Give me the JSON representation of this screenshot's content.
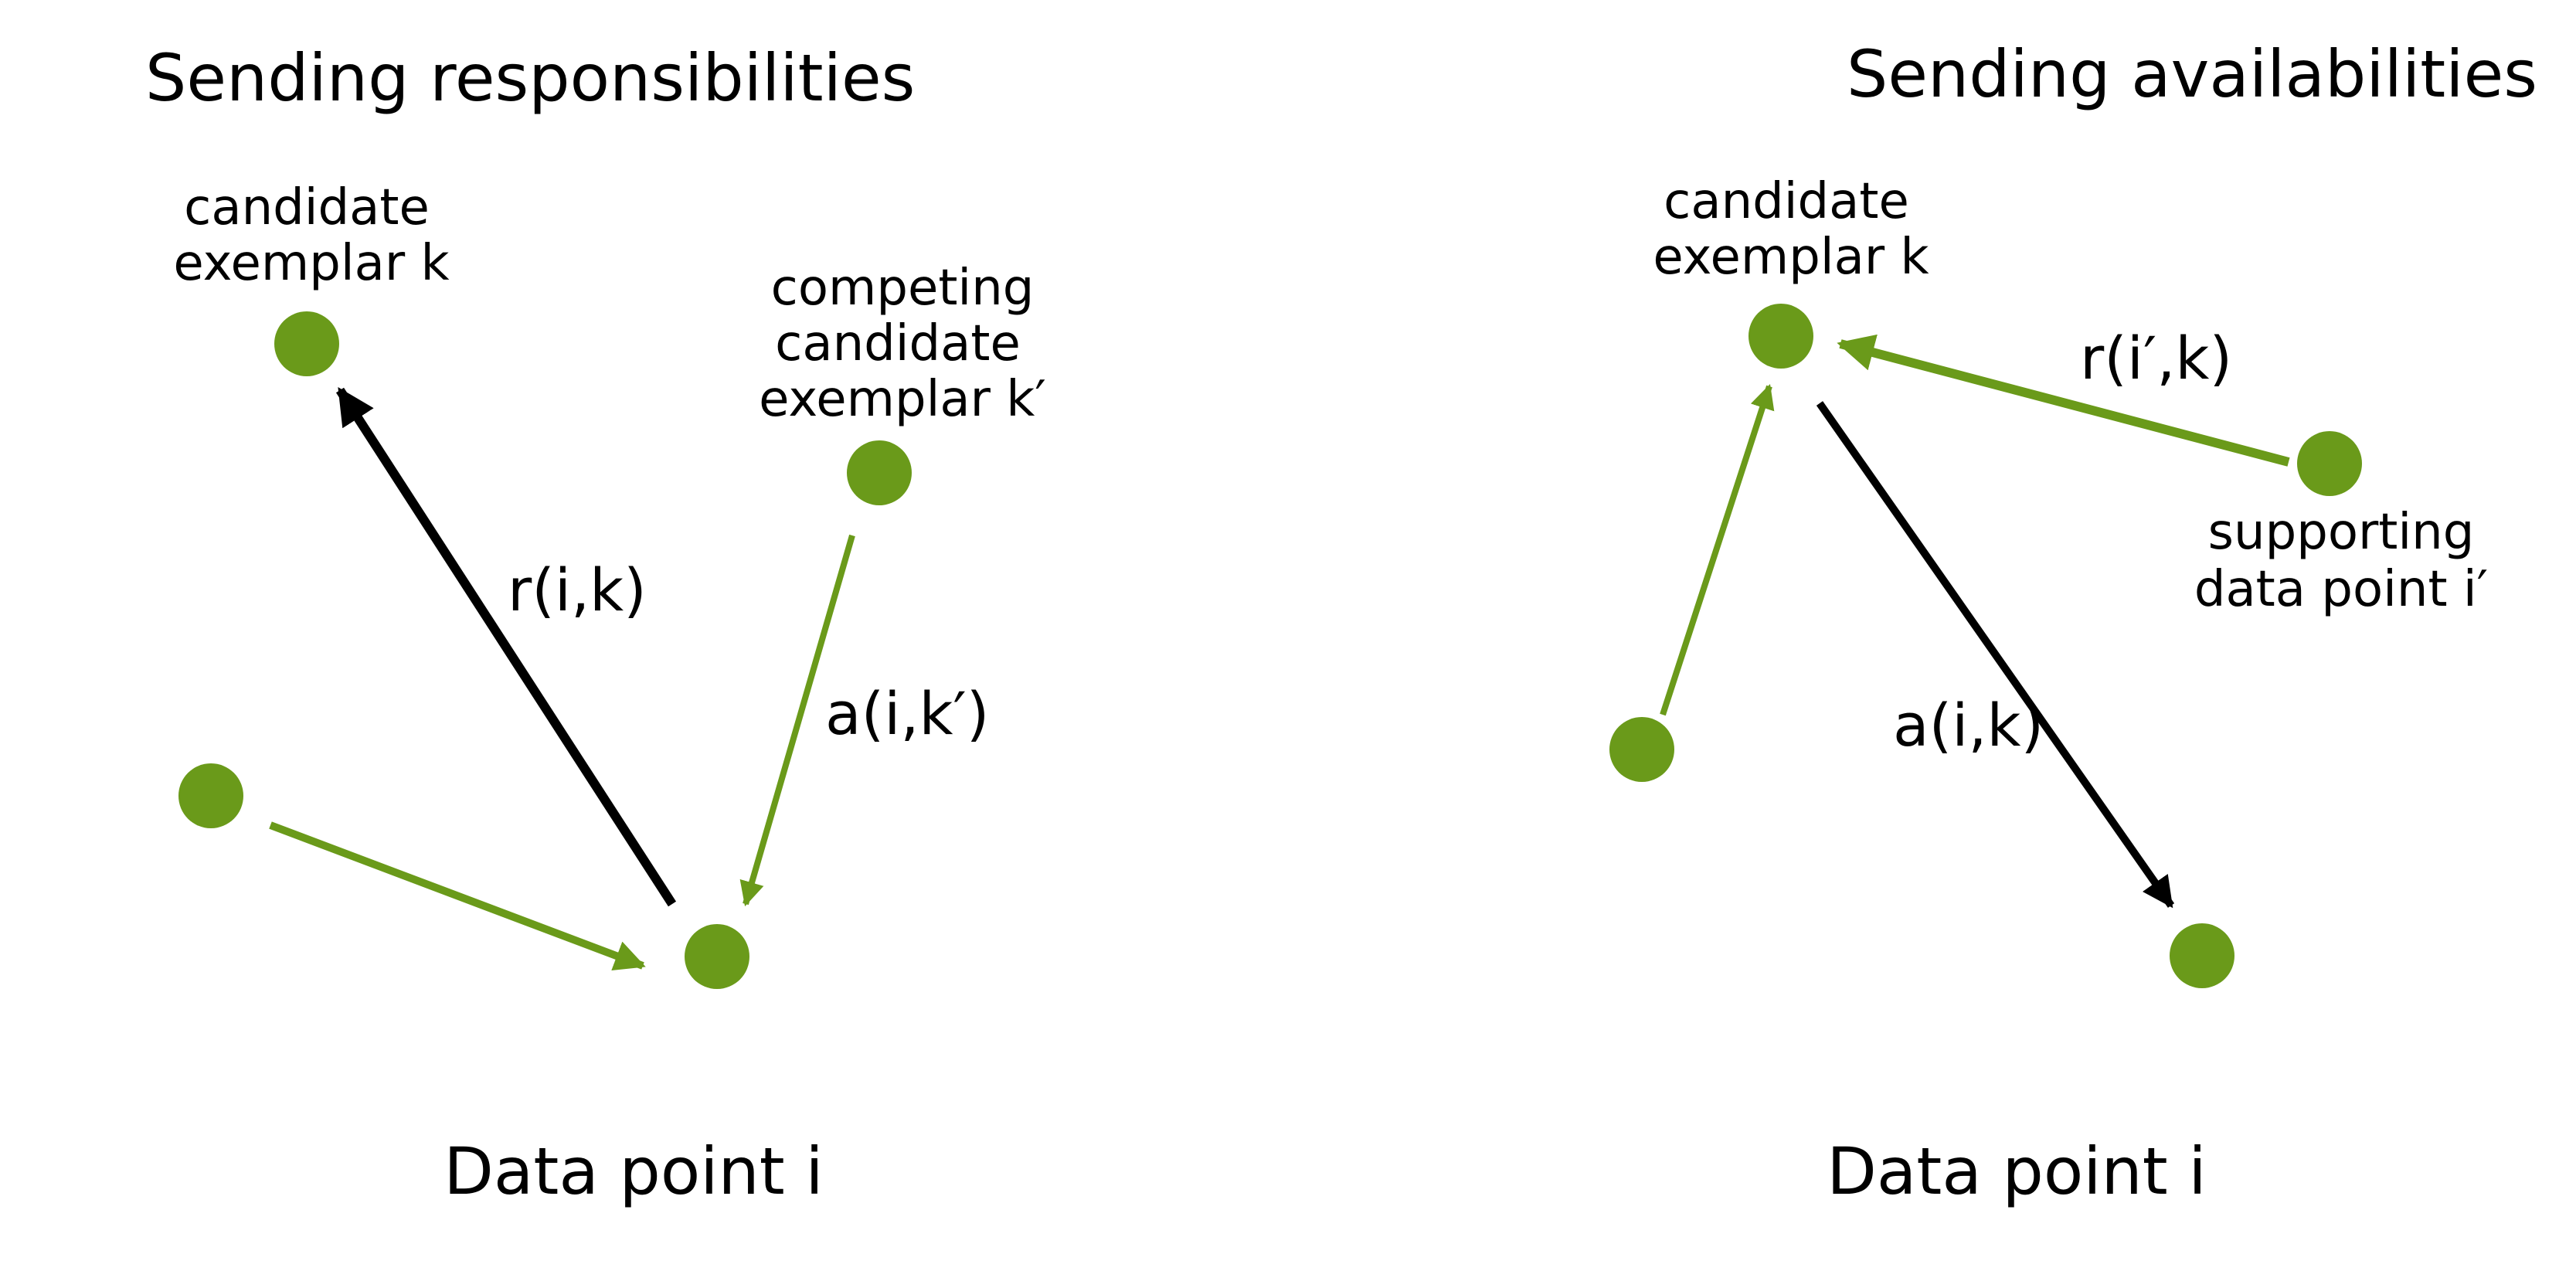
{
  "colors": {
    "node": "#6a9a1a",
    "green_arrow": "#6a9a1a",
    "black_arrow": "#000000",
    "background": "#ffffff"
  },
  "left_panel": {
    "title": "Sending responsibilities",
    "candidate_label_line1": "candidate",
    "candidate_label_line2": "exemplar k",
    "competing_label_line1": "competing",
    "competing_label_line2": "candidate",
    "competing_label_line3": "exemplar k′",
    "r_label": "r(i,k)",
    "a_label": "a(i,k′)",
    "data_point_label": "Data point i"
  },
  "right_panel": {
    "title": "Sending availabilities",
    "candidate_label_line1": "candidate",
    "candidate_label_line2": "exemplar k",
    "supporting_label_line1": "supporting",
    "supporting_label_line2": "data point i′",
    "r_label": "r(i′,k)",
    "a_label": "a(i,k)",
    "data_point_label": "Data point i"
  }
}
